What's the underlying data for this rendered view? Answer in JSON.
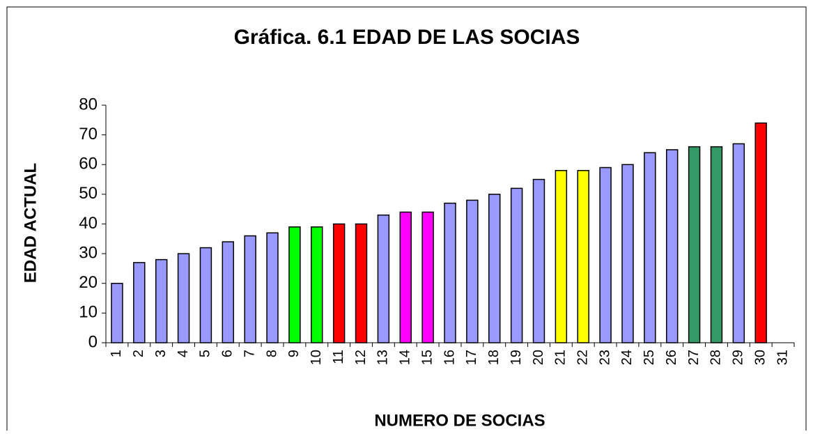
{
  "chart_data": {
    "type": "bar",
    "title": "Gráfica. 6.1 EDAD DE LAS SOCIAS",
    "x_label": "NUMERO DE SOCIAS",
    "y_label": "EDAD ACTUAL",
    "categories": [
      "1",
      "2",
      "3",
      "4",
      "5",
      "6",
      "7",
      "8",
      "9",
      "10",
      "11",
      "12",
      "13",
      "14",
      "15",
      "16",
      "17",
      "18",
      "19",
      "20",
      "21",
      "22",
      "23",
      "24",
      "25",
      "26",
      "27",
      "28",
      "29",
      "30",
      "31"
    ],
    "values": [
      20,
      27,
      28,
      30,
      32,
      34,
      36,
      37,
      39,
      39,
      40,
      40,
      43,
      44,
      44,
      47,
      48,
      50,
      52,
      55,
      58,
      58,
      59,
      60,
      64,
      65,
      66,
      66,
      67,
      74,
      null
    ],
    "colors": [
      "#9999ff",
      "#9999ff",
      "#9999ff",
      "#9999ff",
      "#9999ff",
      "#9999ff",
      "#9999ff",
      "#9999ff",
      "#00ff00",
      "#00ff00",
      "#ff0000",
      "#ff0000",
      "#9999ff",
      "#ff00ff",
      "#ff00ff",
      "#9999ff",
      "#9999ff",
      "#9999ff",
      "#9999ff",
      "#9999ff",
      "#ffff00",
      "#ffff00",
      "#9999ff",
      "#9999ff",
      "#9999ff",
      "#9999ff",
      "#339966",
      "#339966",
      "#9999ff",
      "#ff0000",
      "#9999ff"
    ],
    "ylim": [
      0,
      80
    ],
    "yticks": [
      0,
      10,
      20,
      30,
      40,
      50,
      60,
      70,
      80
    ],
    "grid": false
  }
}
